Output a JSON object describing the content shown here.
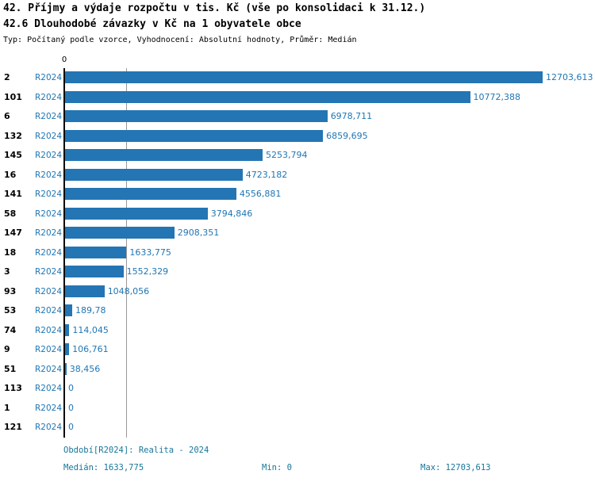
{
  "header": {
    "title_line1": "42. Příjmy a výdaje rozpočtu v tis. Kč (vše po konsolidaci k 31.12.)",
    "title_line2": "42.6 Dlouhodobé závazky v Kč na 1 obyvatele obce",
    "subtitle": "Typ: Počítaný podle vzorce, Vyhodnocení: Absolutní hodnoty, Průměr: Medián"
  },
  "chart_data": {
    "type": "bar",
    "orientation": "horizontal",
    "series_label": "R2024",
    "axis_zero_label": "0",
    "xlim": [
      0,
      12703.613
    ],
    "median_value": 1633.775,
    "grid": "median-line-only",
    "categories": [
      "2",
      "101",
      "6",
      "132",
      "145",
      "16",
      "141",
      "58",
      "147",
      "18",
      "3",
      "93",
      "53",
      "74",
      "9",
      "51",
      "113",
      "1",
      "121"
    ],
    "rows": [
      {
        "category": "2",
        "value": 12703.613,
        "label": "12703,613"
      },
      {
        "category": "101",
        "value": 10772.388,
        "label": "10772,388"
      },
      {
        "category": "6",
        "value": 6978.711,
        "label": "6978,711"
      },
      {
        "category": "132",
        "value": 6859.695,
        "label": "6859,695"
      },
      {
        "category": "145",
        "value": 5253.794,
        "label": "5253,794"
      },
      {
        "category": "16",
        "value": 4723.182,
        "label": "4723,182"
      },
      {
        "category": "141",
        "value": 4556.881,
        "label": "4556,881"
      },
      {
        "category": "58",
        "value": 3794.846,
        "label": "3794,846"
      },
      {
        "category": "147",
        "value": 2908.351,
        "label": "2908,351"
      },
      {
        "category": "18",
        "value": 1633.775,
        "label": "1633,775"
      },
      {
        "category": "3",
        "value": 1552.329,
        "label": "1552,329"
      },
      {
        "category": "93",
        "value": 1048.056,
        "label": "1048,056"
      },
      {
        "category": "53",
        "value": 189.78,
        "label": "189,78"
      },
      {
        "category": "74",
        "value": 114.045,
        "label": "114,045"
      },
      {
        "category": "9",
        "value": 106.761,
        "label": "106,761"
      },
      {
        "category": "51",
        "value": 38.456,
        "label": "38,456"
      },
      {
        "category": "113",
        "value": 0,
        "label": "0"
      },
      {
        "category": "1",
        "value": 0,
        "label": "0"
      },
      {
        "category": "121",
        "value": 0,
        "label": "0"
      }
    ]
  },
  "footer": {
    "period_label": "Období[R2024]: Realita - 2024",
    "median_label": "Medián: 1633,775",
    "min_label": "Min: 0",
    "max_label": "Max: 12703,613"
  },
  "colors": {
    "bar": "#2475b4",
    "value_text": "#1f76b4",
    "footer_text": "#17769a",
    "median_line": "#999999",
    "axis": "#000000"
  }
}
